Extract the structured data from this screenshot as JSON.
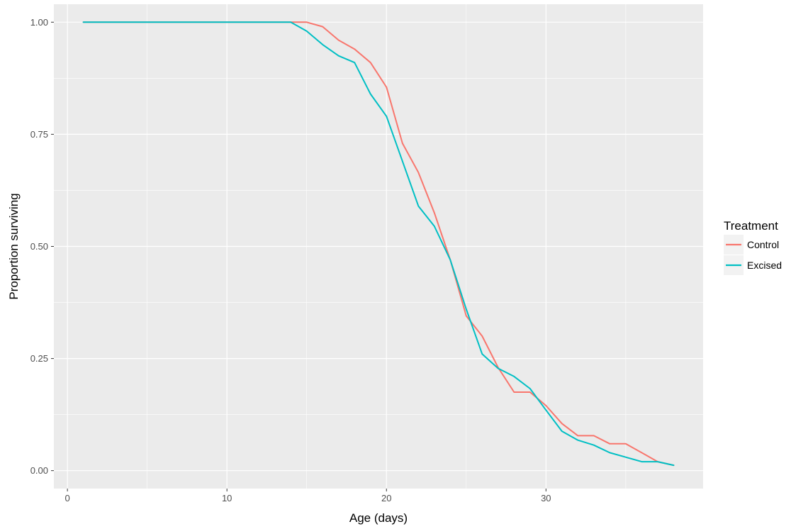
{
  "chart_data": {
    "type": "line",
    "title": "",
    "xlabel": "Age (days)",
    "ylabel": "Proportion surviving",
    "xlim": [
      -0.85,
      39.85
    ],
    "ylim": [
      -0.04,
      1.04
    ],
    "x_ticks": [
      0,
      10,
      20,
      30
    ],
    "x_tick_labels": [
      "0",
      "10",
      "20",
      "30"
    ],
    "y_ticks": [
      0,
      0.25,
      0.5,
      0.75,
      1.0
    ],
    "y_tick_labels": [
      "0.00",
      "0.25",
      "0.50",
      "0.75",
      "1.00"
    ],
    "grid": true,
    "panel_background": "#EBEBEB",
    "legend": {
      "title": "Treatment",
      "position": "right"
    },
    "series": [
      {
        "name": "Control",
        "color": "#F8766D",
        "x": [
          1,
          14,
          15,
          16,
          17,
          18,
          19,
          20,
          21,
          22,
          23,
          24,
          25,
          26,
          27,
          28,
          29,
          30,
          31,
          32,
          33,
          34,
          35,
          36,
          37,
          38
        ],
        "y": [
          1.0,
          1.0,
          1.0,
          0.99,
          0.96,
          0.94,
          0.91,
          0.855,
          0.73,
          0.665,
          0.575,
          0.47,
          0.345,
          0.3,
          0.23,
          0.175,
          0.175,
          0.145,
          0.105,
          0.078,
          0.078,
          0.06,
          0.06,
          0.04,
          0.02,
          0.012
        ]
      },
      {
        "name": "Excised",
        "color": "#00BFC4",
        "x": [
          1,
          14,
          15,
          16,
          17,
          18,
          19,
          20,
          21,
          22,
          23,
          24,
          25,
          26,
          27,
          28,
          29,
          30,
          31,
          32,
          33,
          34,
          35,
          36,
          37,
          38
        ],
        "y": [
          1.0,
          1.0,
          0.98,
          0.95,
          0.925,
          0.91,
          0.84,
          0.79,
          0.69,
          0.59,
          0.545,
          0.47,
          0.36,
          0.26,
          0.228,
          0.21,
          0.183,
          0.135,
          0.088,
          0.068,
          0.057,
          0.04,
          0.03,
          0.02,
          0.02,
          0.012
        ]
      }
    ]
  }
}
